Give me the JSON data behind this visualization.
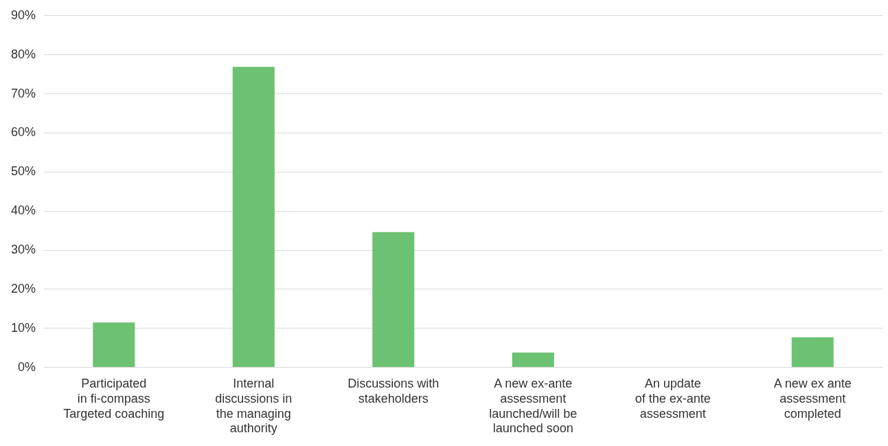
{
  "chart_data": {
    "type": "bar",
    "categories": [
      "Participated\nin fi-compass\nTargeted coaching",
      "Internal\ndiscussions in\nthe managing\nauthority",
      "Discussions with\nstakeholders",
      "A new ex-ante\nassessment\nlaunched/will be\nlaunched soon",
      "An update\nof the ex-ante\nassessment",
      "A new ex ante\nassessment\ncompleted"
    ],
    "values": [
      11.5,
      76.9,
      34.6,
      3.8,
      0,
      7.7
    ],
    "color": "#6cc272",
    "ylim": [
      0,
      90
    ],
    "yticks": [
      {
        "value": 0,
        "label": "0%"
      },
      {
        "value": 10,
        "label": "10%"
      },
      {
        "value": 20,
        "label": "20%"
      },
      {
        "value": 30,
        "label": "30%"
      },
      {
        "value": 40,
        "label": "40%"
      },
      {
        "value": 50,
        "label": "50%"
      },
      {
        "value": 60,
        "label": "60%"
      },
      {
        "value": 70,
        "label": "70%"
      },
      {
        "value": 80,
        "label": "80%"
      },
      {
        "value": 90,
        "label": "90%"
      }
    ],
    "grid": "y",
    "legend": false
  }
}
